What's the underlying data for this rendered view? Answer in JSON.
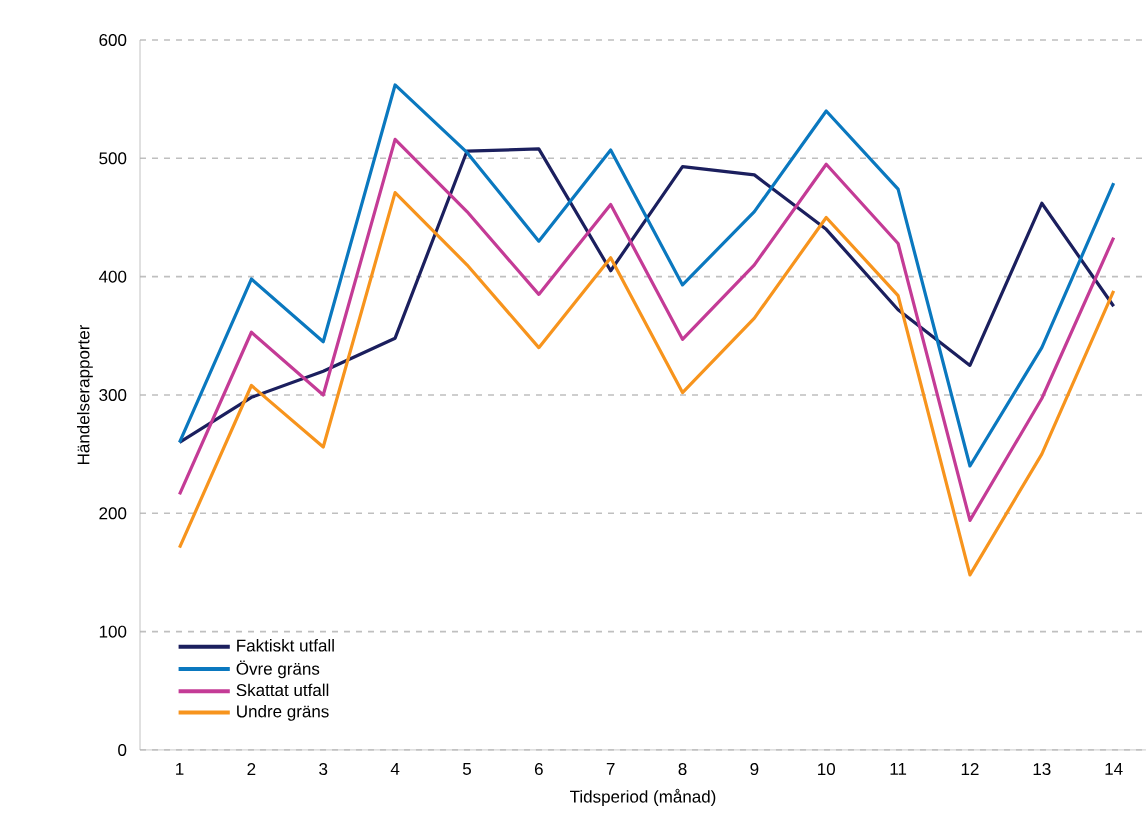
{
  "chart_data": {
    "type": "line",
    "xlabel": "Tidsperiod (månad)",
    "ylabel": "Händelserapporter",
    "categories": [
      "1",
      "2",
      "3",
      "4",
      "5",
      "6",
      "7",
      "8",
      "9",
      "10",
      "11",
      "12",
      "13",
      "14"
    ],
    "series": [
      {
        "name": "Faktiskt utfall",
        "color": "#1b1f5e",
        "values": [
          260,
          298,
          320,
          348,
          506,
          508,
          405,
          493,
          486,
          440,
          372,
          325,
          462,
          375
        ]
      },
      {
        "name": "Övre gräns",
        "color": "#0a78bf",
        "values": [
          260,
          398,
          345,
          562,
          505,
          430,
          507,
          393,
          455,
          540,
          474,
          240,
          340,
          479
        ]
      },
      {
        "name": "Skattat utfall",
        "color": "#c43b96",
        "values": [
          216,
          353,
          300,
          516,
          455,
          385,
          461,
          347,
          410,
          495,
          428,
          194,
          297,
          433
        ]
      },
      {
        "name": "Undre gräns",
        "color": "#f7941d",
        "values": [
          171,
          308,
          256,
          471,
          410,
          340,
          416,
          302,
          365,
          450,
          384,
          148,
          250,
          388
        ]
      }
    ],
    "ylim": [
      0,
      600
    ],
    "yticks": [
      0,
      100,
      200,
      300,
      400,
      500,
      600
    ],
    "grid": "y",
    "legend": "bottom left",
    "marker": "none",
    "line_style": "solid"
  }
}
